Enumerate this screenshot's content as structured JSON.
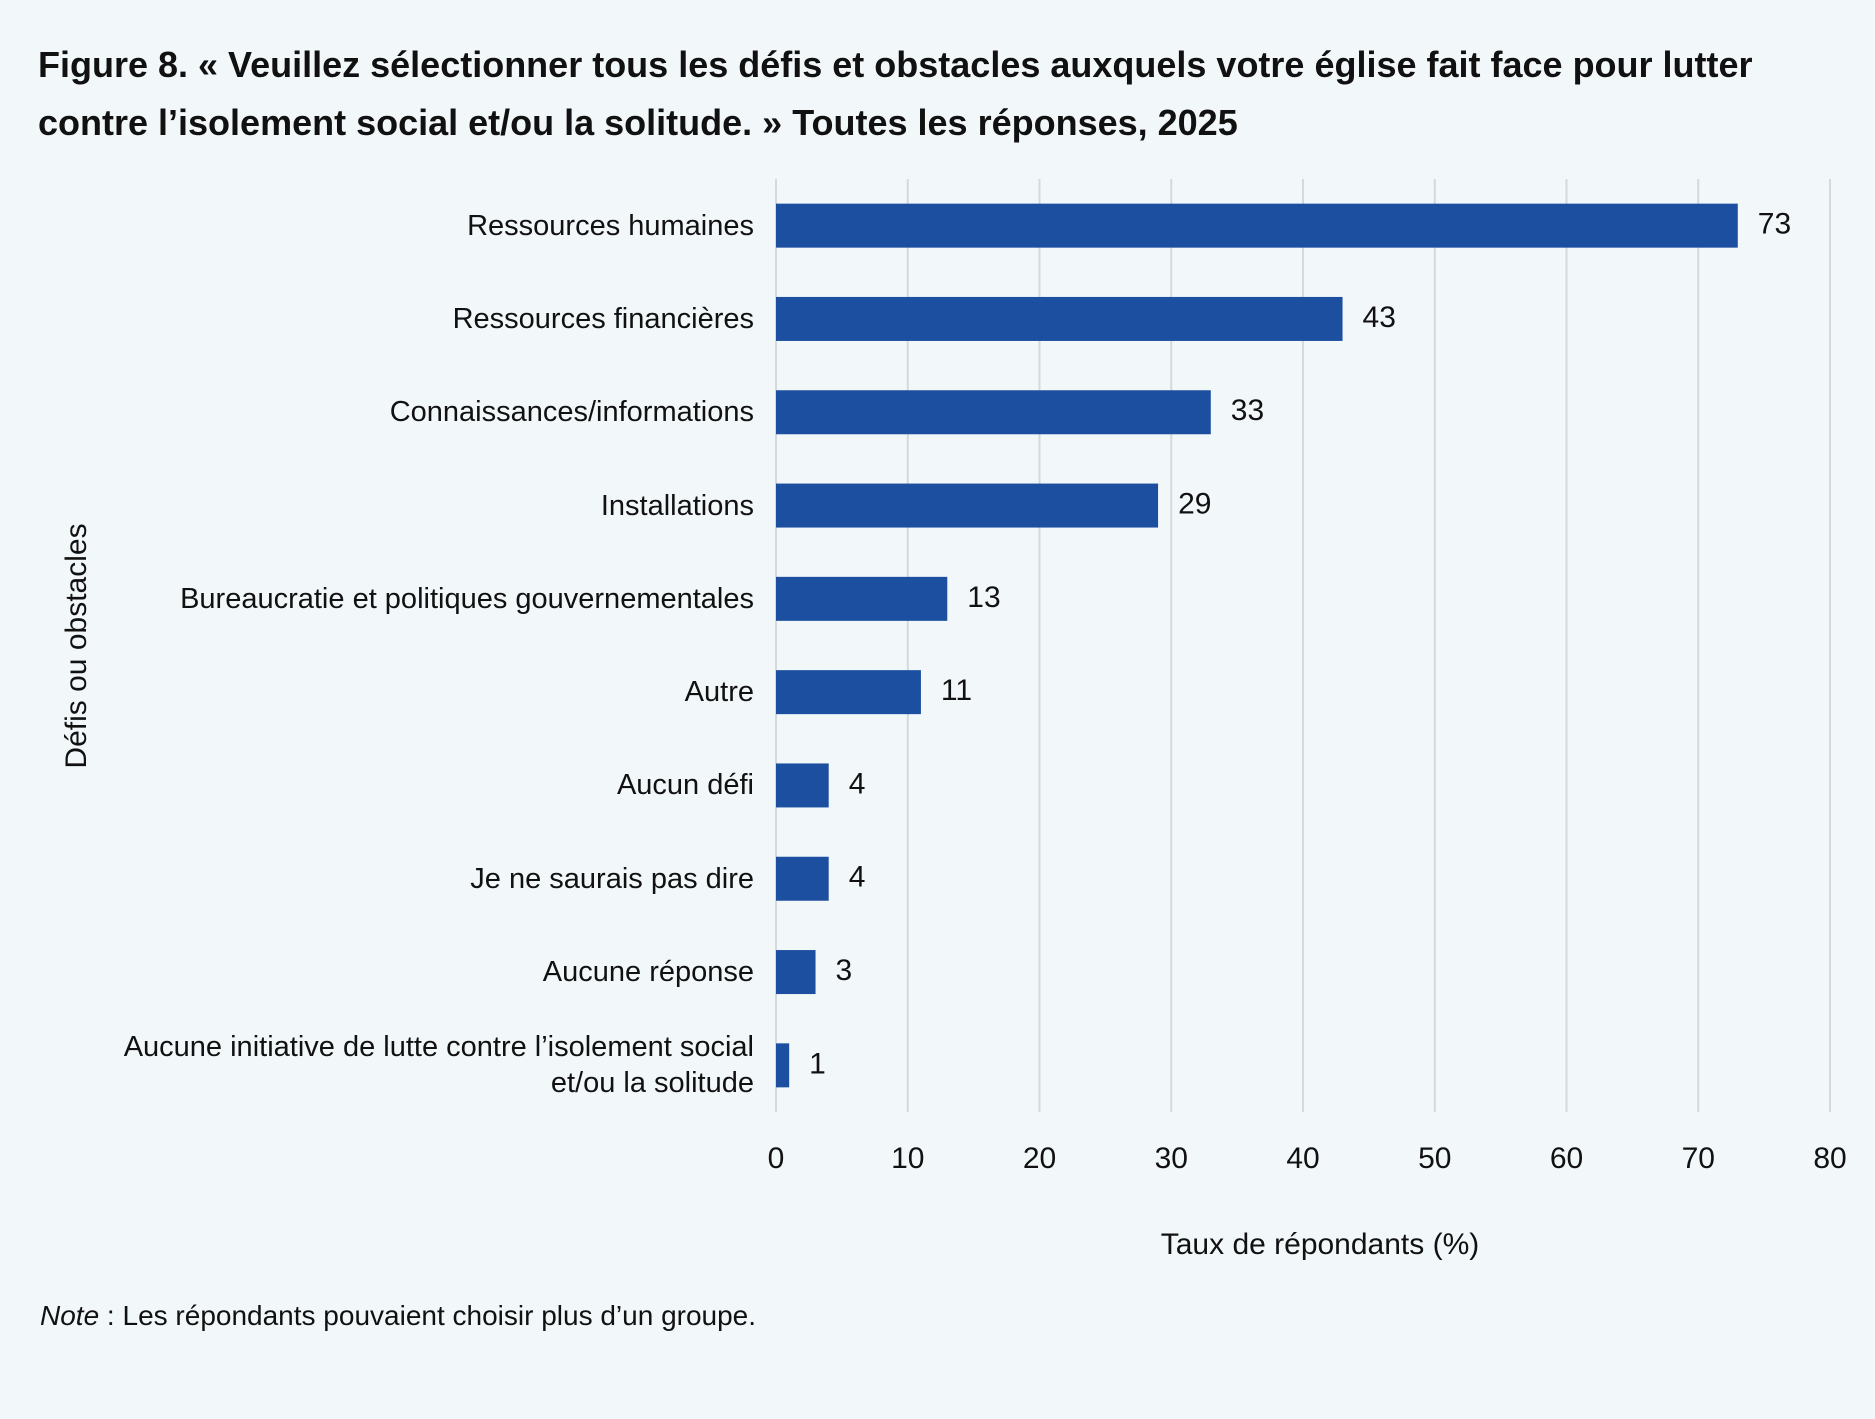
{
  "chart_data": {
    "type": "bar",
    "orientation": "horizontal",
    "title": "Figure 8. « Veuillez sélectionner tous les défis et obstacles auxquels votre église fait face pour lutter contre l’isolement social et/ou la solitude. » Toutes les réponses, 2025",
    "x_label": "Taux de répondants (%)",
    "y_label": "Défis ou obstacles",
    "categories": [
      "Ressources humaines",
      "Ressources financières",
      "Connaissances/informations",
      "Installations",
      "Bureaucratie et politiques gouvernementales",
      "Autre",
      "Aucun défi",
      "Je ne saurais pas dire",
      "Aucune réponse",
      "Aucune initiative de lutte contre l’isolement social et/ou la solitude"
    ],
    "values": [
      73,
      43,
      33,
      29,
      13,
      11,
      4,
      4,
      3,
      1
    ],
    "color": "#1c4fa0",
    "xlim": [
      0,
      80
    ],
    "xticks": [
      0,
      10,
      20,
      30,
      40,
      50,
      60,
      70,
      80
    ],
    "grid": true,
    "note": {
      "label": "Note",
      "text": " : Les répondants pouvaient choisir plus d’un groupe."
    }
  }
}
